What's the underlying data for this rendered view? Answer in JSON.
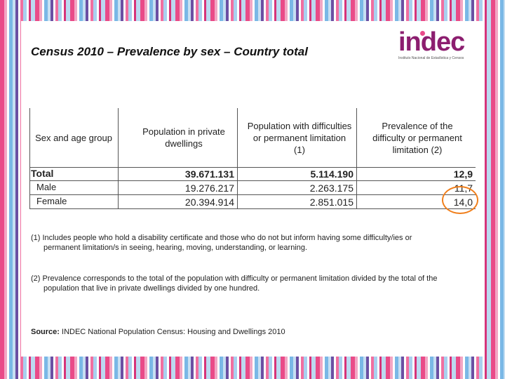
{
  "title": "Census 2010 – Prevalence by sex – Country total",
  "logo": {
    "word": "indec",
    "subtitle": "Instituto Nacional de Estadística y Censos"
  },
  "table": {
    "headers": [
      "Sex and age group",
      "Population in private dwellings",
      "Population with difficulties or permanent limitation (1)",
      "Prevalence of the difficulty or permanent limitation (2)"
    ],
    "rows": [
      {
        "label": "Total",
        "population": "39.671.131",
        "with_difficulty": "5.114.190",
        "prevalence": "12,9"
      },
      {
        "label": "Male",
        "population": "19.276.217",
        "with_difficulty": "2.263.175",
        "prevalence": "11,7"
      },
      {
        "label": "Female",
        "population": "20.394.914",
        "with_difficulty": "2.851.015",
        "prevalence": "14,0"
      }
    ]
  },
  "notes": {
    "note1_first": "(1) Includes people who hold a disability certificate  and those who do not but inform having some difficulty/ies or",
    "note1_second": "permanent limitation/s in seeing, hearing, moving, understanding, or learning.",
    "note2_first": "(2) Prevalence corresponds to the total of the population with difficulty or permanent limitation divided by the total of the",
    "note2_second": "population that live in private dwellings divided by one hundred.",
    "source_label": "Source:",
    "source_text": " INDEC National Population Census: Housing and Dwellings 2010"
  },
  "colors": {
    "accent": "#8c1e6f",
    "highlight": "#f07f1c"
  }
}
